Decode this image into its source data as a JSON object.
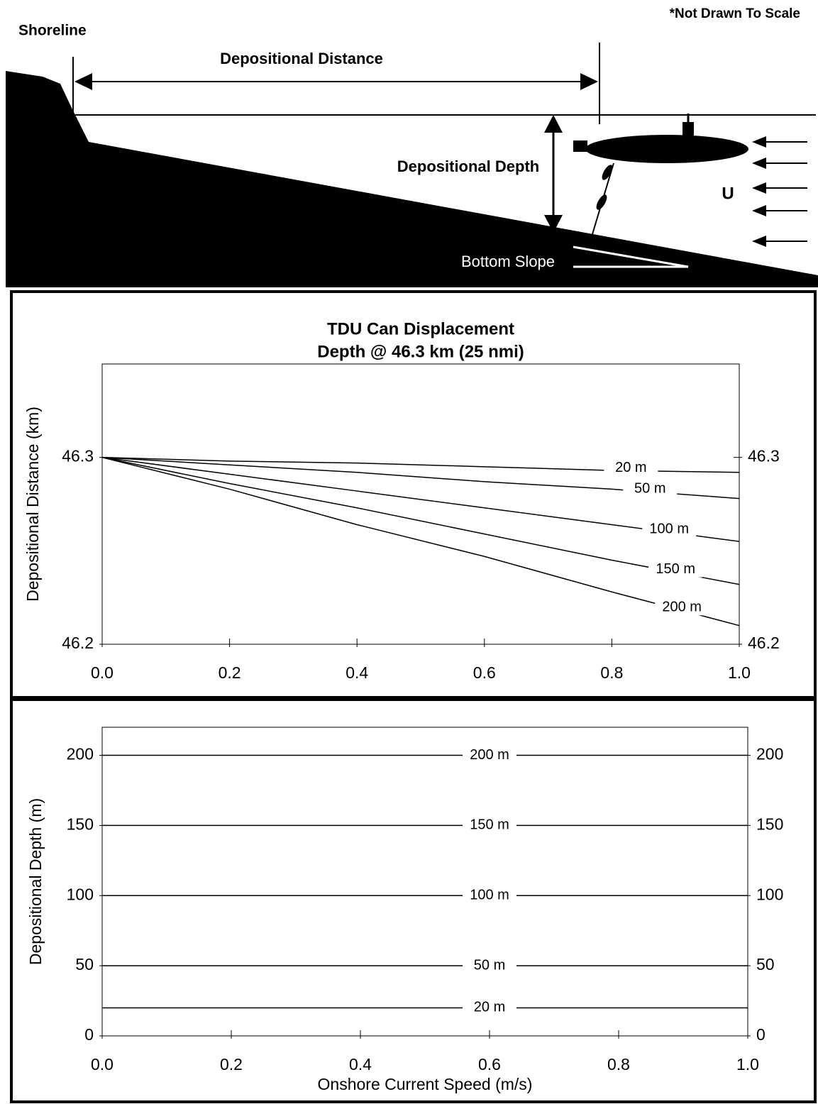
{
  "diagram": {
    "note": "*Not Drawn To Scale",
    "shoreline": "Shoreline",
    "distance": "Depositional Distance",
    "depth": "Depositional Depth",
    "current": "U",
    "slope": "Bottom Slope"
  },
  "chart_data": [
    {
      "type": "line",
      "title": "TDU Can Displacement",
      "subtitle": "Depth @ 46.3 km (25 nmi)",
      "y_label": "Depositional Distance  (km)",
      "x": [
        0,
        0.2,
        0.4,
        0.6,
        0.8,
        1.0
      ],
      "series": [
        {
          "name": "20 m",
          "color": "#000000",
          "values": [
            46.3,
            46.298,
            46.297,
            46.295,
            46.293,
            46.292
          ]
        },
        {
          "name": "50 m",
          "color": "#000000",
          "values": [
            46.3,
            46.296,
            46.292,
            46.287,
            46.283,
            46.278
          ]
        },
        {
          "name": "100 m",
          "color": "#000000",
          "values": [
            46.3,
            46.291,
            46.282,
            46.273,
            46.264,
            46.255
          ]
        },
        {
          "name": "150 m",
          "color": "#000000",
          "values": [
            46.3,
            46.286,
            46.273,
            46.259,
            46.245,
            46.232
          ]
        },
        {
          "name": "200 m",
          "color": "#000000",
          "values": [
            46.3,
            46.283,
            46.264,
            46.247,
            46.228,
            46.21
          ]
        }
      ],
      "xlim": [
        0,
        1
      ],
      "xticks": [
        {
          "value": 0,
          "label": "0.0"
        },
        0.2,
        0.4,
        0.6,
        0.8,
        {
          "value": 1,
          "label": "1.0"
        }
      ],
      "ylim": [
        46.2,
        46.35
      ],
      "yticks": [
        46.2,
        46.3
      ]
    },
    {
      "type": "line",
      "x_label": "Onshore Current Speed (m/s)",
      "y_label": "Depositional Depth (m)",
      "x": [
        0,
        1
      ],
      "series": [
        {
          "name": "20 m",
          "color": "#000000",
          "values": [
            20,
            20
          ]
        },
        {
          "name": "50 m",
          "color": "#000000",
          "values": [
            50,
            50
          ]
        },
        {
          "name": "100 m",
          "color": "#000000",
          "values": [
            100,
            100
          ]
        },
        {
          "name": "150 m",
          "color": "#000000",
          "values": [
            150,
            150
          ]
        },
        {
          "name": "200 m",
          "color": "#000000",
          "values": [
            200,
            200
          ]
        }
      ],
      "xlim": [
        0,
        1
      ],
      "xticks": [
        {
          "value": 0,
          "label": "0.0"
        },
        0.2,
        0.4,
        0.6,
        0.8,
        {
          "value": 1,
          "label": "1.0"
        }
      ],
      "ylim": [
        0,
        220
      ],
      "yticks": [
        0,
        50,
        100,
        150,
        200
      ]
    }
  ]
}
